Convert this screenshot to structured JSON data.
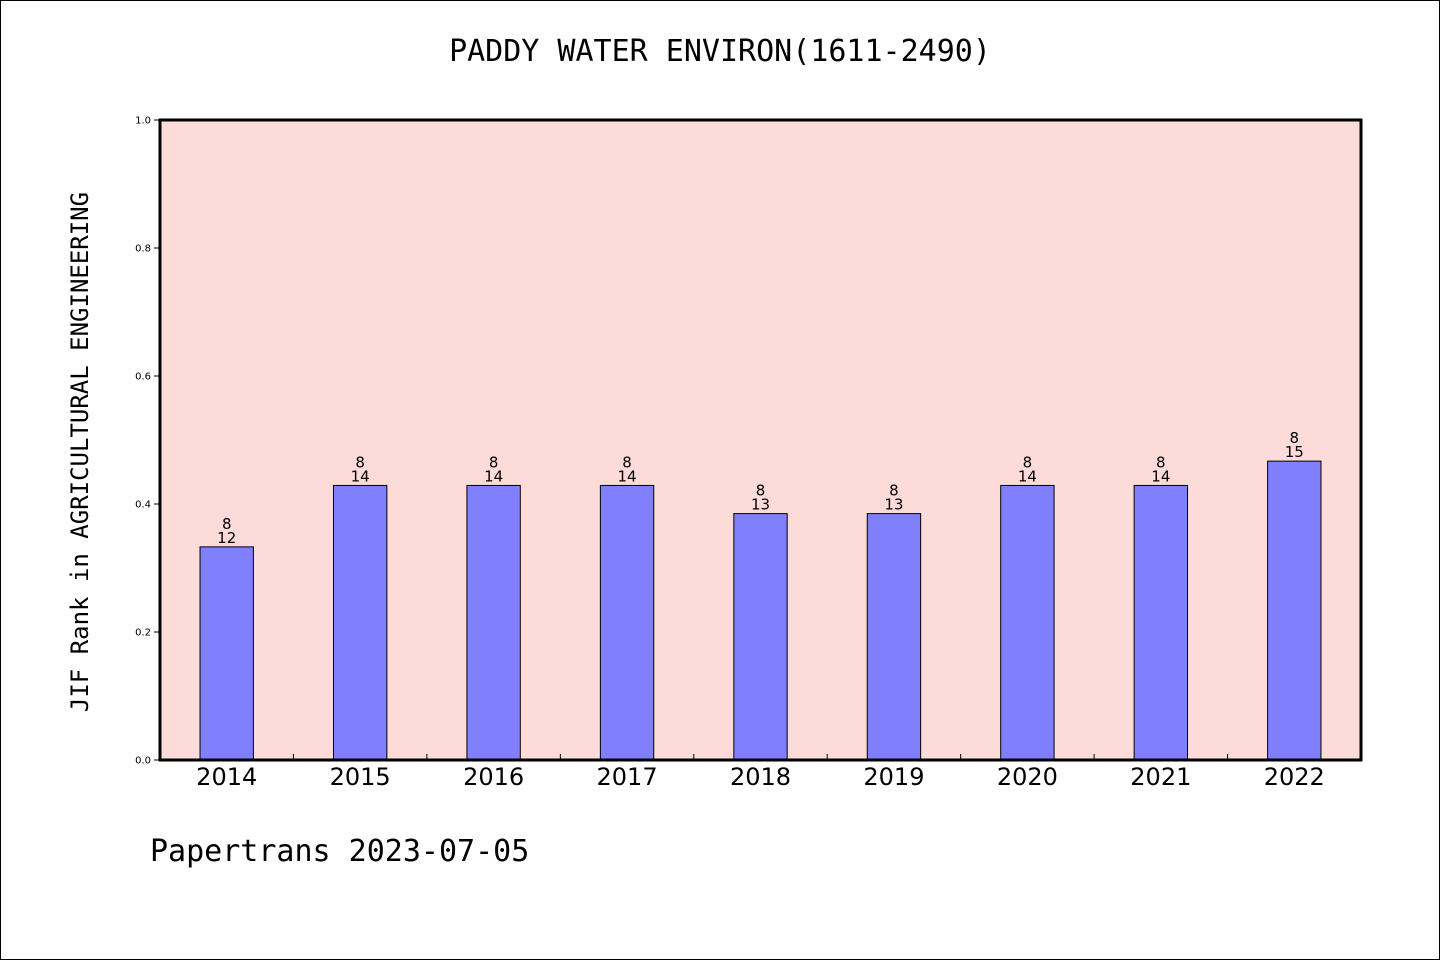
{
  "chart_data": {
    "type": "bar",
    "title": "PADDY WATER ENVIRON(1611-2490)",
    "ylabel": "JIF Rank in AGRICULTURAL ENGINEERING",
    "xlabel": "",
    "categories": [
      "2014",
      "2015",
      "2016",
      "2017",
      "2018",
      "2019",
      "2020",
      "2021",
      "2022"
    ],
    "values": [
      0.333,
      0.429,
      0.429,
      0.429,
      0.385,
      0.385,
      0.429,
      0.429,
      0.467
    ],
    "bar_labels": [
      [
        "8",
        "12"
      ],
      [
        "8",
        "14"
      ],
      [
        "8",
        "14"
      ],
      [
        "8",
        "14"
      ],
      [
        "8",
        "13"
      ],
      [
        "8",
        "13"
      ],
      [
        "8",
        "14"
      ],
      [
        "8",
        "14"
      ],
      [
        "8",
        "15"
      ]
    ],
    "ylim": [
      0,
      1.0
    ],
    "yticks": [
      "0.0",
      "0.2",
      "0.4",
      "0.6",
      "0.8",
      "1.0"
    ],
    "grid": false,
    "colors": {
      "plot_background": "#fddbd8",
      "bar_fill": "#8080ff",
      "bar_edge": "#000000"
    }
  },
  "footer": "Papertrans 2023-07-05"
}
